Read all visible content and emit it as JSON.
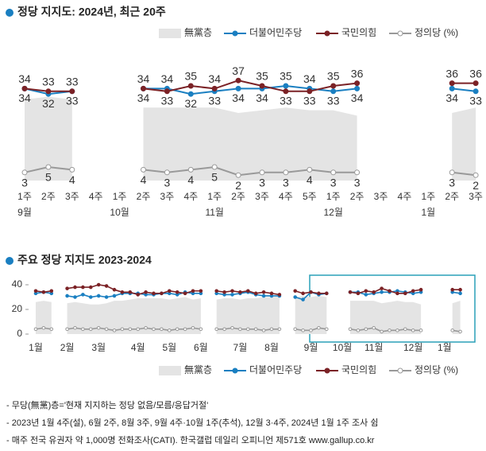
{
  "chart_data": [
    {
      "type": "line",
      "title": "정당 지지도: 2024년, 최근 20주",
      "data_labels": true,
      "categories": [
        "1주",
        "2주",
        "3주",
        "4주",
        "1주",
        "2주",
        "3주",
        "4주",
        "1주",
        "2주",
        "3주",
        "4주",
        "5주",
        "1주",
        "2주",
        "3주",
        "4주",
        "1주",
        "2주",
        "3주"
      ],
      "month_labels": [
        "9월",
        null,
        null,
        null,
        "10월",
        null,
        null,
        null,
        "11월",
        null,
        null,
        null,
        null,
        "12월",
        null,
        null,
        null,
        "1월",
        null,
        null
      ],
      "ylim": [
        0,
        40
      ],
      "series": [
        {
          "name": "無黨층",
          "color": "#e4e4e4",
          "style": "area",
          "values": [
            30,
            31,
            30,
            null,
            null,
            27,
            27,
            27,
            27,
            25,
            26,
            27,
            26,
            26,
            24,
            null,
            null,
            null,
            25,
            27
          ]
        },
        {
          "name": "더불어민주당",
          "color": "#1a7fc1",
          "values": [
            34,
            32,
            33,
            null,
            null,
            34,
            34,
            32,
            33,
            34,
            34,
            35,
            34,
            33,
            34,
            null,
            null,
            null,
            34,
            33
          ]
        },
        {
          "name": "국민의힘",
          "color": "#7b2226",
          "values": [
            34,
            33,
            33,
            null,
            null,
            34,
            33,
            35,
            34,
            37,
            35,
            33,
            33,
            35,
            36,
            null,
            null,
            null,
            36,
            36
          ]
        },
        {
          "name": "정의당 (%)",
          "color": "#999999",
          "values": [
            3,
            5,
            4,
            null,
            null,
            4,
            3,
            4,
            5,
            2,
            3,
            3,
            4,
            3,
            3,
            null,
            null,
            null,
            3,
            2
          ]
        }
      ]
    },
    {
      "type": "line",
      "title": "주요 정당 지지도 2023-2024",
      "data_labels": false,
      "categories": [
        "1월",
        null,
        null,
        null,
        "2월",
        null,
        null,
        null,
        "3월",
        null,
        null,
        null,
        null,
        "4월",
        null,
        null,
        null,
        "5월",
        null,
        null,
        null,
        "6월",
        null,
        null,
        null,
        null,
        "7월",
        null,
        null,
        null,
        "8월",
        null,
        null,
        null,
        null,
        "9월",
        null,
        null,
        null,
        "10월",
        null,
        null,
        null,
        "11월",
        null,
        null,
        null,
        null,
        "12월",
        null,
        null,
        null,
        "1월",
        null,
        null
      ],
      "ylim": [
        0,
        50
      ],
      "yticks": [
        0,
        20,
        40
      ],
      "series": [
        {
          "name": "無黨층",
          "color": "#e4e4e4",
          "style": "area",
          "values": [
            26,
            27,
            26,
            null,
            25,
            26,
            25,
            24,
            24,
            25,
            27,
            27,
            28,
            29,
            29,
            29,
            29,
            28,
            29,
            30,
            28,
            29,
            null,
            28,
            29,
            29,
            28,
            29,
            29,
            30,
            30,
            31,
            null,
            30,
            31,
            30,
            31,
            30,
            null,
            null,
            27,
            27,
            27,
            27,
            25,
            26,
            27,
            26,
            26,
            24,
            null,
            null,
            null,
            25,
            27
          ]
        },
        {
          "name": "더불어민주당",
          "color": "#1a7fc1",
          "values": [
            33,
            34,
            33,
            null,
            31,
            30,
            32,
            30,
            31,
            30,
            31,
            33,
            33,
            33,
            32,
            32,
            33,
            33,
            32,
            34,
            33,
            33,
            null,
            33,
            32,
            32,
            33,
            34,
            32,
            31,
            31,
            31,
            null,
            30,
            28,
            34,
            32,
            33,
            null,
            null,
            34,
            34,
            32,
            33,
            34,
            34,
            35,
            34,
            33,
            34,
            null,
            null,
            null,
            34,
            33
          ]
        },
        {
          "name": "국민의힘",
          "color": "#7b2226",
          "values": [
            35,
            34,
            35,
            null,
            37,
            38,
            38,
            38,
            40,
            39,
            36,
            34,
            34,
            32,
            34,
            33,
            33,
            35,
            34,
            33,
            35,
            35,
            null,
            35,
            34,
            35,
            34,
            35,
            33,
            34,
            33,
            32,
            null,
            35,
            33,
            34,
            33,
            33,
            null,
            null,
            34,
            33,
            35,
            34,
            37,
            35,
            33,
            33,
            35,
            36,
            null,
            null,
            null,
            36,
            36
          ]
        },
        {
          "name": "정의당 (%)",
          "color": "#999999",
          "values": [
            4,
            5,
            4,
            null,
            4,
            5,
            4,
            4,
            5,
            4,
            3,
            4,
            4,
            4,
            5,
            4,
            4,
            3,
            4,
            4,
            5,
            4,
            null,
            4,
            4,
            5,
            4,
            4,
            4,
            3,
            4,
            4,
            null,
            4,
            3,
            3,
            5,
            4,
            null,
            null,
            4,
            3,
            4,
            5,
            2,
            3,
            3,
            4,
            3,
            3,
            null,
            null,
            null,
            3,
            2
          ]
        }
      ]
    }
  ],
  "notes": [
    "- 무당(無黨)층='현재 지지하는 정당 없음/모름/응답거절'",
    "- 2023년 1월 4주(설), 6월 2주, 8월 3주, 9월 4주·10월 1주(추석), 12월 3·4주, 2024년 1월 1주 조사 쉼",
    "- 매주 전국 유권자 약 1,000명 전화조사(CATI). 한국갤럽 데일리 오피니언 제571호 www.gallup.co.kr"
  ]
}
